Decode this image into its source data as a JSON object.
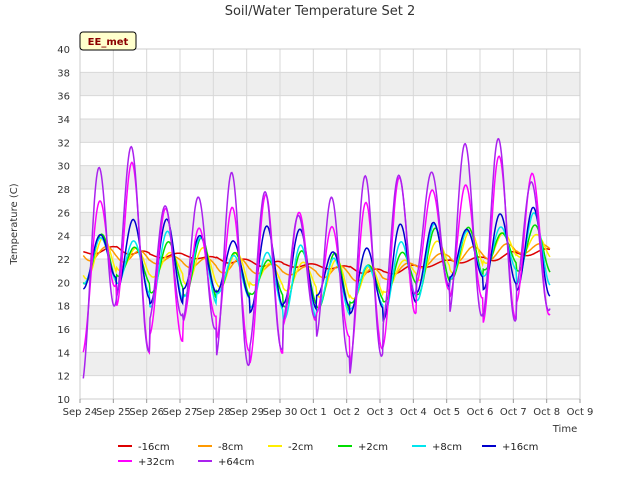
{
  "chart_data": {
    "type": "line",
    "title": "Soil/Water Temperature Set 2",
    "xlabel": "Time",
    "ylabel": "Temperature (C)",
    "badge": "EE_met",
    "ylim": [
      10,
      40
    ],
    "yticks": [
      "10",
      "12",
      "14",
      "16",
      "18",
      "20",
      "22",
      "24",
      "26",
      "28",
      "30",
      "32",
      "34",
      "36",
      "38",
      "40"
    ],
    "xlim": [
      "2023-09-24",
      "2023-10-09"
    ],
    "xticks": [
      "Sep 24",
      "Sep 25",
      "Sep 26",
      "Sep 27",
      "Sep 28",
      "Sep 29",
      "Sep 30",
      "Oct 1",
      "Oct 2",
      "Oct 3",
      "Oct 4",
      "Oct 5",
      "Oct 6",
      "Oct 7",
      "Oct 8",
      "Oct 9"
    ],
    "grid": true,
    "legend_position": "bottom",
    "series": [
      {
        "name": "-16cm",
        "color": "#dd0000",
        "x": [
          "Sep 24",
          "Sep 25",
          "Sep 26",
          "Sep 27",
          "Sep 28",
          "Sep 29",
          "Sep 30",
          "Oct 1",
          "Oct 2",
          "Oct 3",
          "Oct 4",
          "Oct 5",
          "Oct 6",
          "Oct 7",
          "Oct 8"
        ],
        "y": [
          22.5,
          22.9,
          22.3,
          22.3,
          22.0,
          21.7,
          21.5,
          21.4,
          21.2,
          20.8,
          21.3,
          21.8,
          22.0,
          22.4,
          22.7
        ]
      },
      {
        "name": "-8cm",
        "color": "#ff9900",
        "x": [
          "Sep 24",
          "Sep 25",
          "Sep 26",
          "Sep 27",
          "Sep 28",
          "Sep 29",
          "Sep 30",
          "Oct 1",
          "Oct 2",
          "Oct 3",
          "Oct 4",
          "Oct 5",
          "Oct 6",
          "Oct 7",
          "Oct 8"
        ],
        "y": [
          22.5,
          22.4,
          22.0,
          21.8,
          21.5,
          21.3,
          21.0,
          21.0,
          20.8,
          20.5,
          21.5,
          22.3,
          22.5,
          22.8,
          23.0
        ]
      },
      {
        "name": "-2cm",
        "color": "#ffee00",
        "x": [
          "Sep 24",
          "Sep 25",
          "Sep 26",
          "Sep 27",
          "Sep 28",
          "Sep 29",
          "Sep 30",
          "Oct 1",
          "Oct 2",
          "Oct 3",
          "Oct 4",
          "Oct 5",
          "Oct 6",
          "Oct 7",
          "Oct 8"
        ],
        "y": [
          22.0,
          22.2,
          21.5,
          21.5,
          21.2,
          20.8,
          20.5,
          20.5,
          20.0,
          20.0,
          21.5,
          22.5,
          22.8,
          23.2,
          23.0
        ]
      },
      {
        "name": "+2cm",
        "color": "#00dd00",
        "x": [
          "Sep 24",
          "Sep 25",
          "Sep 26",
          "Sep 27",
          "Sep 28",
          "Sep 29",
          "Sep 30",
          "Oct 1",
          "Oct 2",
          "Oct 3",
          "Oct 4",
          "Oct 5",
          "Oct 6",
          "Oct 7",
          "Oct 8"
        ],
        "y": [
          22.0,
          22.0,
          21.2,
          21.5,
          21.0,
          20.5,
          20.3,
          20.3,
          19.8,
          20.0,
          21.5,
          22.5,
          22.5,
          23.0,
          22.8
        ]
      },
      {
        "name": "+8cm",
        "color": "#00e5ee",
        "x": [
          "Sep 24",
          "Sep 25",
          "Sep 26",
          "Sep 27",
          "Sep 28",
          "Sep 29",
          "Sep 30",
          "Oct 1",
          "Oct 2",
          "Oct 3",
          "Oct 4",
          "Oct 5",
          "Oct 6",
          "Oct 7",
          "Oct 8"
        ],
        "y": [
          21.8,
          22.0,
          21.0,
          21.5,
          20.8,
          20.3,
          20.0,
          20.0,
          19.5,
          19.8,
          21.5,
          22.3,
          22.5,
          23.0,
          22.8
        ]
      },
      {
        "name": "+16cm",
        "color": "#0000cc",
        "x": [
          "Sep 24",
          "Sep 25",
          "Sep 26",
          "Sep 27",
          "Sep 28",
          "Sep 29",
          "Sep 30",
          "Oct 1",
          "Oct 2",
          "Oct 3",
          "Oct 4",
          "Oct 5",
          "Oct 6",
          "Oct 7",
          "Oct 8"
        ],
        "y": [
          21.5,
          22.5,
          21.8,
          21.8,
          21.5,
          21.0,
          21.5,
          21.0,
          20.0,
          20.5,
          22.0,
          22.5,
          22.5,
          23.0,
          22.5
        ]
      },
      {
        "name": "+32cm",
        "color": "#ff00ff",
        "x": [
          "Sep 24",
          "Sep 25",
          "Sep 26",
          "Sep 27",
          "Sep 28",
          "Sep 29",
          "Sep 30",
          "Oct 1",
          "Oct 2",
          "Oct 3",
          "Oct 4",
          "Oct 5",
          "Oct 6",
          "Oct 7",
          "Oct 8"
        ],
        "y": [
          19.0,
          25.0,
          21.0,
          20.5,
          21.0,
          20.0,
          21.0,
          21.5,
          19.5,
          21.0,
          24.0,
          23.5,
          23.5,
          24.0,
          23.0
        ]
      },
      {
        "name": "+64cm",
        "color": "#aa22ee",
        "x": [
          "Sep 24",
          "Sep 25",
          "Sep 26",
          "Sep 27",
          "Sep 28",
          "Sep 29",
          "Sep 30",
          "Oct 1",
          "Oct 2",
          "Oct 3",
          "Oct 4",
          "Oct 5",
          "Oct 6",
          "Oct 7",
          "Oct 8"
        ],
        "y": [
          19.0,
          26.0,
          21.5,
          22.0,
          21.5,
          21.0,
          21.0,
          21.5,
          20.0,
          22.0,
          25.0,
          24.5,
          24.5,
          24.5,
          22.5
        ]
      }
    ],
    "diurnal": [
      {
        "name": "-16cm",
        "amp": 0.25,
        "phase": 0.35
      },
      {
        "name": "-8cm",
        "amp": 0.6,
        "phase": 0.2
      },
      {
        "name": "-2cm",
        "amp": 1.6,
        "phase": 0.1
      },
      {
        "name": "+2cm",
        "amp": 2.4,
        "phase": 0.05
      },
      {
        "name": "+8cm",
        "amp": 2.9,
        "phase": 0.02
      },
      {
        "name": "+16cm",
        "amp": 3.4,
        "phase": 0.0
      },
      {
        "name": "+32cm",
        "amp": 6.5,
        "phase": -0.03
      },
      {
        "name": "+64cm",
        "amp": 7.5,
        "phase": -0.05
      }
    ]
  }
}
